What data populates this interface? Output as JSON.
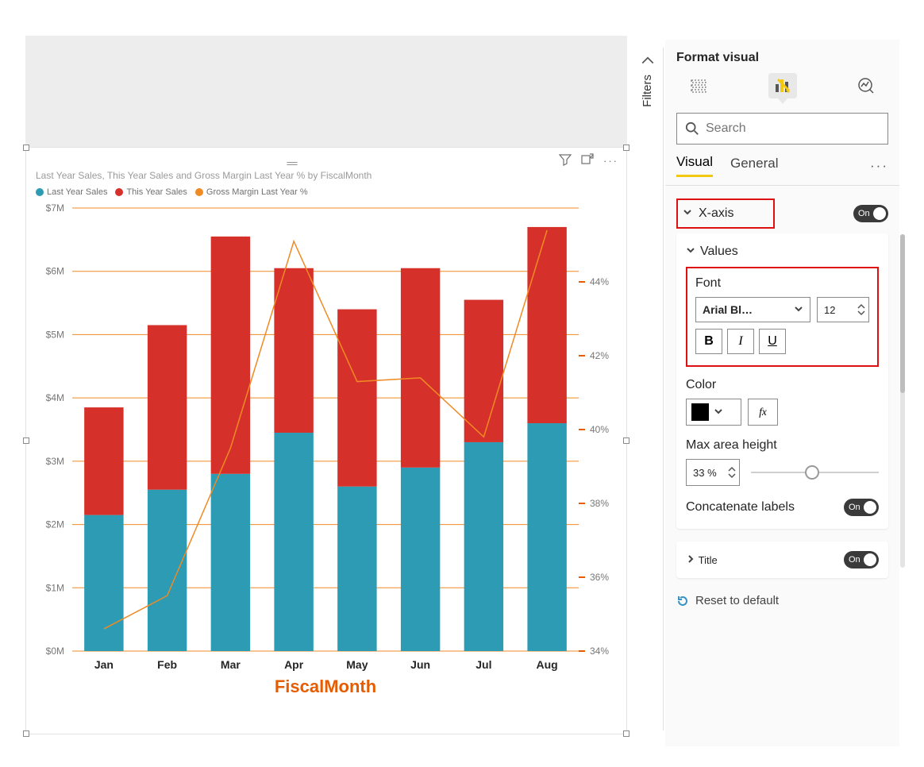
{
  "chart": {
    "title": "Last Year Sales, This Year Sales and Gross Margin Last Year % by FiscalMonth",
    "x_axis_title": "FiscalMonth",
    "legend": [
      {
        "label": "Last Year Sales",
        "color": "#2c9bb3"
      },
      {
        "label": "This Year Sales",
        "color": "#d6302a"
      },
      {
        "label": "Gross Margin Last Year %",
        "color": "#f08a24"
      }
    ],
    "categories": [
      "Jan",
      "Feb",
      "Mar",
      "Apr",
      "May",
      "Jun",
      "Jul",
      "Aug"
    ],
    "last_year_sales": [
      2.15,
      2.55,
      2.8,
      3.45,
      2.6,
      2.9,
      3.3,
      3.6
    ],
    "this_year_sales": [
      3.85,
      5.15,
      6.55,
      6.05,
      5.4,
      6.05,
      5.55,
      6.7
    ],
    "gross_margin_pct": [
      34.6,
      35.5,
      39.5,
      45.1,
      41.3,
      41.4,
      39.8,
      45.4
    ],
    "y_left": {
      "min": 0,
      "max": 7,
      "step": 1,
      "prefix": "$",
      "suffix": "M"
    },
    "y_right": {
      "labels": [
        34,
        36,
        38,
        40,
        42,
        44
      ],
      "suffix": "%"
    },
    "grid_color": "#f08a24",
    "x_label_fontsize": 14,
    "x_label_fontfamily": "Arial Black",
    "x_label_color": "#252525",
    "axis_title_color": "#e65c00"
  },
  "filters": {
    "label": "Filters"
  },
  "pane": {
    "title": "Format visual",
    "search_placeholder": "Search",
    "tabs": {
      "visual": "Visual",
      "general": "General"
    },
    "xaxis": {
      "label": "X-axis",
      "toggle": "On"
    },
    "values": {
      "label": "Values"
    },
    "font": {
      "label": "Font",
      "family": "Arial Bl…",
      "size": "12",
      "bold": "B",
      "italic": "I",
      "underline": "U"
    },
    "color": {
      "label": "Color",
      "value": "#000000",
      "fx": "fx"
    },
    "maxHeight": {
      "label": "Max area height",
      "value": "33",
      "unit": "%",
      "slider_pct": 48
    },
    "concat": {
      "label": "Concatenate labels",
      "toggle": "On"
    },
    "titleSection": {
      "label": "Title",
      "toggle": "On"
    },
    "reset": {
      "label": "Reset to default"
    }
  }
}
